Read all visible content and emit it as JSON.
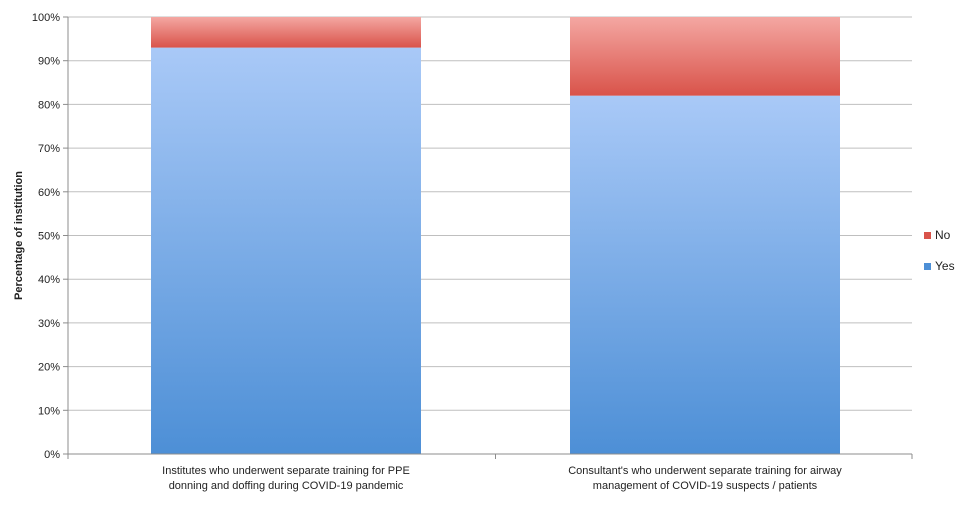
{
  "chart_data": {
    "type": "bar",
    "stacked": true,
    "percent_stacked": true,
    "categories": [
      [
        "Institutes who underwent separate training for PPE",
        "donning and doffing during COVID-19 pandemic"
      ],
      [
        "Consultant's who underwent separate training for airway",
        "management of COVID-19 suspects / patients"
      ]
    ],
    "series": [
      {
        "name": "Yes",
        "values": [
          93,
          82
        ],
        "color_top": "#a9c9f7",
        "color_bottom": "#4d8fd6"
      },
      {
        "name": "No",
        "values": [
          7,
          18
        ],
        "color_top": "#f4a7a2",
        "color_bottom": "#d9534a"
      }
    ],
    "ylabel": "Percentage of institution",
    "ylim": [
      0,
      100
    ],
    "yticks": [
      0,
      10,
      20,
      30,
      40,
      50,
      60,
      70,
      80,
      90,
      100
    ],
    "ytick_suffix": "%",
    "grid": true,
    "legend": {
      "placement": "right",
      "order": [
        "No",
        "Yes"
      ]
    }
  }
}
